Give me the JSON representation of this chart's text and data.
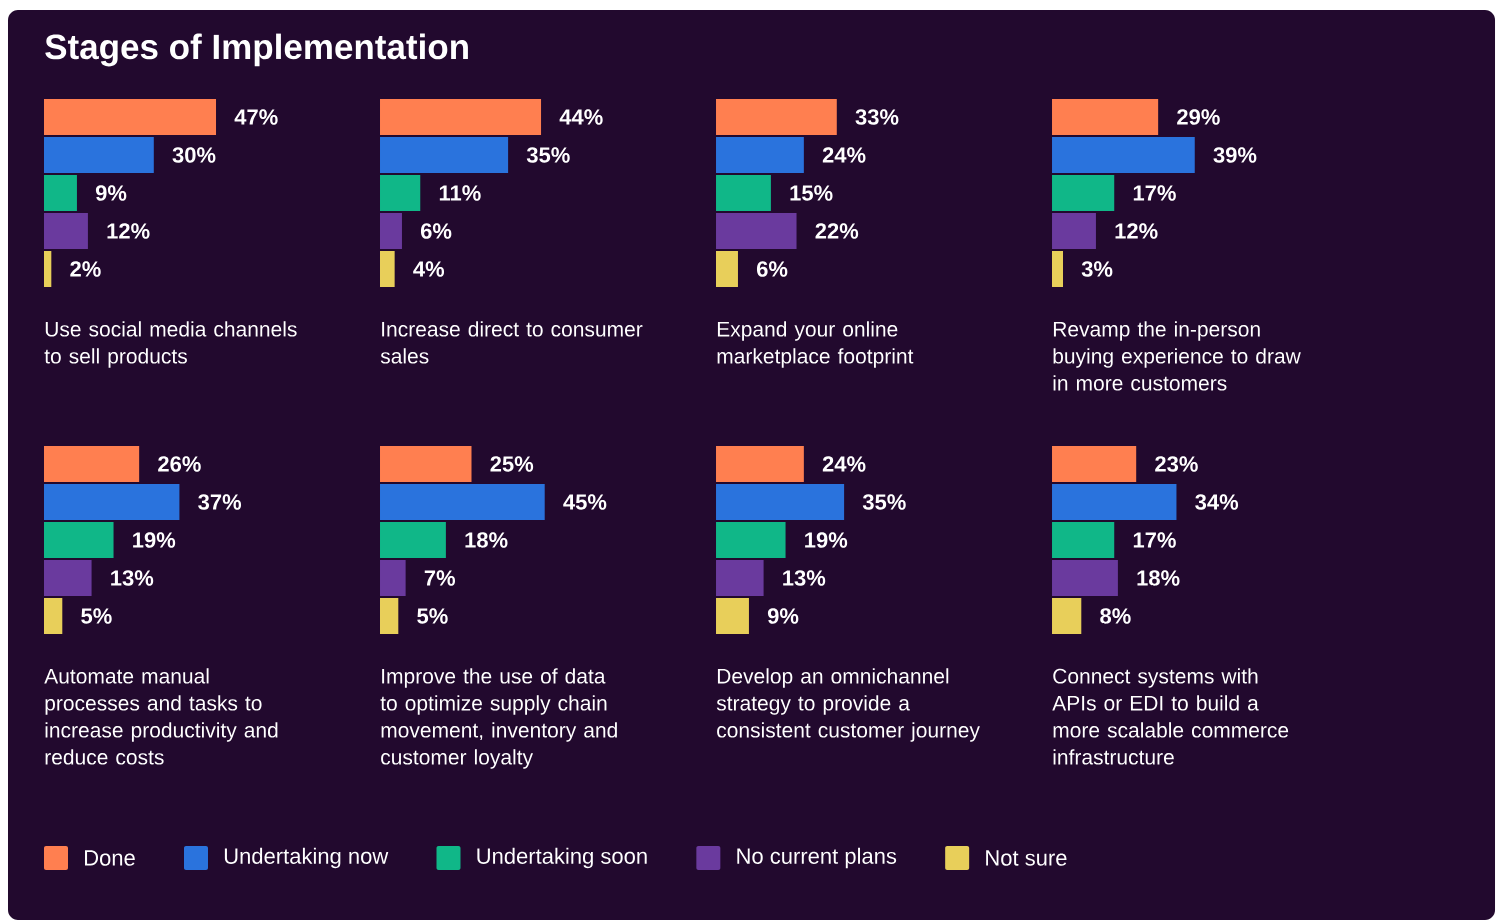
{
  "chart_data": [
    {
      "type": "bar",
      "orientation": "horizontal",
      "title": "Stages of Implementation",
      "xlabel": "Use social media channels to sell products",
      "categories": [
        null
      ],
      "legend": "bottom",
      "series": [
        {
          "name": "Done",
          "color": "#ff7f50",
          "values": [
            47
          ],
          "value_labels": [
            "47%"
          ]
        },
        {
          "name": "Undertaking now",
          "color": "#2a73dd",
          "values": [
            30
          ],
          "value_labels": [
            "30%"
          ]
        },
        {
          "name": "Undertaking soon",
          "color": "#10b788",
          "values": [
            9
          ],
          "value_labels": [
            "9%"
          ]
        },
        {
          "name": "No current plans",
          "color": "#6a3a9e",
          "values": [
            12
          ],
          "value_labels": [
            "12%"
          ]
        },
        {
          "name": "Not sure",
          "color": "#e8cf5a",
          "values": [
            2
          ],
          "value_labels": [
            "2%"
          ]
        }
      ]
    },
    {
      "type": "bar",
      "orientation": "horizontal",
      "xlabel": "Increase direct to consumer sales",
      "categories": [
        null
      ],
      "series": [
        {
          "color": "#ff7f50",
          "values": [
            44
          ],
          "value_labels": [
            "44%"
          ]
        },
        {
          "color": "#2a73dd",
          "values": [
            35
          ],
          "value_labels": [
            "35%"
          ]
        },
        {
          "color": "#10b788",
          "values": [
            11
          ],
          "value_labels": [
            "11%"
          ]
        },
        {
          "color": "#6a3a9e",
          "values": [
            6
          ],
          "value_labels": [
            "6%"
          ]
        },
        {
          "color": "#e8cf5a",
          "values": [
            4
          ],
          "value_labels": [
            "4%"
          ]
        }
      ]
    },
    {
      "type": "bar",
      "orientation": "horizontal",
      "xlabel": "Expand your online marketplace footprint",
      "categories": [
        null
      ],
      "series": [
        {
          "color": "#ff7f50",
          "values": [
            33
          ],
          "value_labels": [
            "33%"
          ]
        },
        {
          "color": "#2a73dd",
          "values": [
            24
          ],
          "value_labels": [
            "24%"
          ]
        },
        {
          "color": "#10b788",
          "values": [
            15
          ],
          "value_labels": [
            "15%"
          ]
        },
        {
          "color": "#6a3a9e",
          "values": [
            22
          ],
          "value_labels": [
            "22%"
          ]
        },
        {
          "color": "#e8cf5a",
          "values": [
            6
          ],
          "value_labels": [
            "6%"
          ]
        }
      ]
    },
    {
      "type": "bar",
      "orientation": "horizontal",
      "xlabel": "Revamp the in-person buying experience to draw in more customers",
      "categories": [
        null
      ],
      "series": [
        {
          "color": "#ff7f50",
          "values": [
            29
          ],
          "value_labels": [
            "29%"
          ]
        },
        {
          "color": "#2a73dd",
          "values": [
            39
          ],
          "value_labels": [
            "39%"
          ]
        },
        {
          "color": "#10b788",
          "values": [
            17
          ],
          "value_labels": [
            "17%"
          ]
        },
        {
          "color": "#6a3a9e",
          "values": [
            12
          ],
          "value_labels": [
            "12%"
          ]
        },
        {
          "color": "#e8cf5a",
          "values": [
            3
          ],
          "value_labels": [
            "3%"
          ]
        }
      ]
    },
    {
      "type": "bar",
      "orientation": "horizontal",
      "xlabel": "Automate manual processes and tasks to increase productivity and reduce costs",
      "categories": [
        null
      ],
      "series": [
        {
          "color": "#ff7f50",
          "values": [
            26
          ],
          "value_labels": [
            "26%"
          ]
        },
        {
          "color": "#2a73dd",
          "values": [
            37
          ],
          "value_labels": [
            "37%"
          ]
        },
        {
          "color": "#10b788",
          "values": [
            19
          ],
          "value_labels": [
            "19%"
          ]
        },
        {
          "color": "#6a3a9e",
          "values": [
            13
          ],
          "value_labels": [
            "13%"
          ]
        },
        {
          "color": "#e8cf5a",
          "values": [
            5
          ],
          "value_labels": [
            "5%"
          ]
        }
      ]
    },
    {
      "type": "bar",
      "orientation": "horizontal",
      "xlabel": "Improve the use of data to optimize supply chain movement, inventory and customer loyalty",
      "categories": [
        null
      ],
      "series": [
        {
          "color": "#ff7f50",
          "values": [
            25
          ],
          "value_labels": [
            "25%"
          ]
        },
        {
          "color": "#2a73dd",
          "values": [
            45
          ],
          "value_labels": [
            "45%"
          ]
        },
        {
          "color": "#10b788",
          "values": [
            18
          ],
          "value_labels": [
            "18%"
          ]
        },
        {
          "color": "#6a3a9e",
          "values": [
            7
          ],
          "value_labels": [
            "7%"
          ]
        },
        {
          "color": "#e8cf5a",
          "values": [
            5
          ],
          "value_labels": [
            "5%"
          ]
        }
      ]
    },
    {
      "type": "bar",
      "orientation": "horizontal",
      "xlabel": "Develop an omnichannel strategy to provide a consistent customer journey",
      "categories": [
        null
      ],
      "series": [
        {
          "color": "#ff7f50",
          "values": [
            24
          ],
          "value_labels": [
            "24%"
          ]
        },
        {
          "color": "#2a73dd",
          "values": [
            35
          ],
          "value_labels": [
            "35%"
          ]
        },
        {
          "color": "#10b788",
          "values": [
            19
          ],
          "value_labels": [
            "19%"
          ]
        },
        {
          "color": "#6a3a9e",
          "values": [
            13
          ],
          "value_labels": [
            "13%"
          ]
        },
        {
          "color": "#e8cf5a",
          "values": [
            9
          ],
          "value_labels": [
            "9%"
          ]
        }
      ]
    },
    {
      "type": "bar",
      "orientation": "horizontal",
      "xlabel": "Connect systems with APIs or EDI to build a more scalable commerce infrastructure",
      "categories": [
        null
      ],
      "series": [
        {
          "color": "#ff7f50",
          "values": [
            23
          ],
          "value_labels": [
            "23%"
          ]
        },
        {
          "color": "#2a73dd",
          "values": [
            34
          ],
          "value_labels": [
            "34%"
          ]
        },
        {
          "color": "#10b788",
          "values": [
            17
          ],
          "value_labels": [
            "17%"
          ]
        },
        {
          "color": "#6a3a9e",
          "values": [
            18
          ],
          "value_labels": [
            "18%"
          ]
        },
        {
          "color": "#e8cf5a",
          "values": [
            8
          ],
          "value_labels": [
            "8%"
          ]
        }
      ]
    }
  ]
}
